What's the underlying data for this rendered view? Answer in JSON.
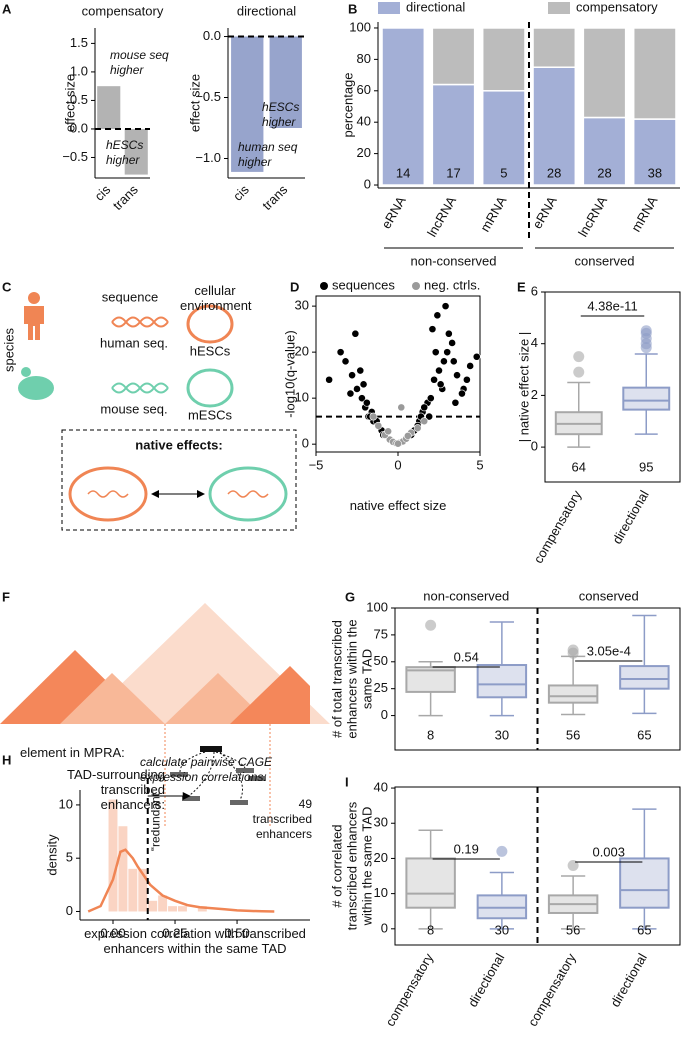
{
  "panel_labels": [
    "A",
    "B",
    "C",
    "D",
    "E",
    "F",
    "G",
    "H",
    "I"
  ],
  "diagram_c": {
    "sequence": "sequence",
    "environment": "cellular environment",
    "human_seq": "human seq.",
    "hescs": "hESCs",
    "mouse_seq": "mouse seq.",
    "mescs": "mESCs",
    "species": "species",
    "native": "native effects:"
  },
  "diagram_f": {
    "element": "element in MPRA:",
    "enhancers": "TAD-surrounding transcribed enhancers:"
  },
  "chart_data": [
    {
      "type": "bar",
      "title": "compensatory",
      "ylabel": "effect size",
      "categories": [
        "cis",
        "trans"
      ],
      "values": [
        0.75,
        -0.8
      ],
      "color": "#b3b3b3",
      "ylim": [
        -0.86,
        1.77
      ],
      "yticks": [
        {
          "value": -0.5,
          "label": "−0.5"
        },
        {
          "value": 0,
          "label": "0.0"
        },
        {
          "value": 0.5,
          "label": "0.5"
        },
        {
          "value": 1,
          "label": "1.0"
        },
        {
          "value": 1.5,
          "label": "1.5"
        }
      ],
      "annotations": [
        "mouse seq higher",
        "hESCs higher"
      ]
    },
    {
      "type": "bar",
      "title": "directional",
      "ylabel": "effect size",
      "categories": [
        "cis",
        "trans"
      ],
      "values": [
        -1.11,
        -0.75
      ],
      "color": "#97a4cc",
      "ylim": [
        -1.16,
        0.07
      ],
      "yticks": [
        {
          "value": -1,
          "label": "−1.0"
        },
        {
          "value": -0.5,
          "label": "−0.5"
        },
        {
          "value": 0,
          "label": "0.0"
        }
      ],
      "annotations": [
        "hESCs higher",
        "human seq higher"
      ]
    },
    {
      "type": "stacked",
      "ylabel": "percentage",
      "categories": [
        "eRNA",
        "lncRNA",
        "mRNA",
        "eRNA",
        "lncRNA",
        "mRNA"
      ],
      "series": [
        {
          "name": "directional",
          "color": "#a3afd6",
          "values": [
            100,
            64,
            60,
            75,
            43,
            42
          ]
        },
        {
          "name": "compensatory",
          "color": "#bcbcbc",
          "values": [
            0,
            36,
            40,
            25,
            57,
            58
          ]
        }
      ],
      "n": [
        14,
        17,
        5,
        28,
        28,
        38
      ],
      "groups": [
        "non-conserved",
        "conserved"
      ],
      "ylim": [
        -1.9,
        103.8
      ],
      "yticks": [
        0,
        20,
        40,
        60,
        80,
        100
      ]
    },
    {
      "type": "scatter",
      "xlabel": "native effect size",
      "ylabel": "-log10(q-value)",
      "xlim": [
        -5,
        5
      ],
      "ylim": [
        -1.7,
        32.2
      ],
      "xticks": [
        {
          "value": -5,
          "label": "−5"
        },
        0,
        5
      ],
      "yticks": [
        0,
        10,
        20,
        30
      ],
      "hline": 6,
      "series": [
        {
          "name": "sequences",
          "color": "#000000",
          "x": [
            -3.2,
            -2.8,
            -2.5,
            -2.2,
            -2.0,
            -1.8,
            -1.5,
            -1.2,
            -1.0,
            -3.5,
            -4.2,
            -2.6,
            -2.3,
            -1.9,
            -1.6,
            -1.3,
            -0.9,
            -2.9,
            -2.1,
            -1.7,
            1.0,
            1.3,
            1.5,
            1.8,
            2.0,
            2.2,
            2.5,
            2.8,
            3.0,
            3.3,
            3.6,
            4.0,
            4.4,
            4.8,
            1.2,
            1.6,
            2.1,
            2.4,
            2.7,
            3.1,
            3.5,
            3.9,
            1.9,
            2.6,
            3.4,
            4.2,
            2.3,
            2.9,
            1.4,
            0.8
          ],
          "y": [
            18,
            15,
            12,
            10,
            8,
            6,
            5,
            4,
            3,
            20,
            14,
            24,
            16,
            9,
            7,
            5,
            2,
            11,
            13,
            6,
            3,
            5,
            7,
            9,
            10,
            14,
            16,
            18,
            20,
            22,
            15,
            12,
            17,
            19,
            4,
            8,
            25,
            28,
            12,
            24,
            9,
            11,
            6,
            13,
            18,
            14,
            20,
            30,
            6,
            2
          ]
        },
        {
          "name": "neg. ctrls.",
          "color": "#9a9a9a",
          "x": [
            -0.5,
            -0.3,
            -0.1,
            0.1,
            0.3,
            0.5,
            -0.8,
            0.8,
            -1.2,
            1.2,
            0.0,
            -0.6,
            0.6,
            -1.5,
            1.6,
            0.2
          ],
          "y": [
            1,
            0.5,
            0.2,
            0.3,
            0.6,
            1.2,
            2,
            2.5,
            4,
            3.5,
            0.1,
            2.8,
            1.8,
            6,
            5,
            8
          ]
        }
      ]
    },
    {
      "type": "box",
      "ylabel": "| native effect size |",
      "categories": [
        "compensatory",
        "directional"
      ],
      "ylim": [
        -1.35,
        6
      ],
      "yticks": [
        0,
        2,
        4,
        6
      ],
      "boxes": [
        {
          "q1": 0.5,
          "median": 0.9,
          "q3": 1.35,
          "whislo": 0,
          "whishi": 2.5,
          "fliers": [
            2.9,
            3.5
          ],
          "color": "#a8a8a8"
        },
        {
          "q1": 1.45,
          "median": 1.8,
          "q3": 2.3,
          "whislo": 0.5,
          "whishi": 3.6,
          "fliers": [
            3.85,
            4.0,
            4.2,
            4.4,
            4.5
          ],
          "color": "#8d9cc7"
        }
      ],
      "n": [
        64,
        95
      ],
      "pvalues": [
        "4.38e-11"
      ]
    },
    {
      "type": "box",
      "ylabel": "# of total transcribed enhancers within the same TAD",
      "ylim": [
        -32,
        100
      ],
      "yticks": [
        0,
        25,
        50,
        75,
        100
      ],
      "boxes": [
        {
          "q1": 22,
          "median": 42,
          "q3": 45,
          "whislo": 0,
          "whishi": 50,
          "fliers": [
            84
          ],
          "color": "#a8a8a8"
        },
        {
          "q1": 17,
          "median": 29,
          "q3": 47,
          "whislo": 0,
          "whishi": 87,
          "fliers": [],
          "color": "#8d9cc7"
        },
        {
          "q1": 12,
          "median": 18,
          "q3": 28,
          "whislo": 1,
          "whishi": 55,
          "fliers": [
            58,
            61
          ],
          "color": "#a8a8a8"
        },
        {
          "q1": 25,
          "median": 34,
          "q3": 46,
          "whislo": 2,
          "whishi": 93,
          "fliers": [],
          "color": "#8d9cc7"
        }
      ],
      "n": [
        8,
        30,
        56,
        65
      ],
      "pvalues": [
        "0.54",
        "3.05e-4"
      ],
      "groups": [
        "non-conserved",
        "conserved"
      ]
    },
    {
      "type": "box",
      "ylabel": "# of correlated transcribed enhancers within the same TAD",
      "categories": [
        "compensatory",
        "directional",
        "compensatory",
        "directional"
      ],
      "ylim": [
        -4.6,
        40.3
      ],
      "yticks": [
        0,
        10,
        20,
        30,
        40
      ],
      "boxes": [
        {
          "q1": 6,
          "median": 10,
          "q3": 20,
          "whislo": 0,
          "whishi": 28,
          "fliers": [],
          "color": "#a8a8a8"
        },
        {
          "q1": 3,
          "median": 6,
          "q3": 9.5,
          "whislo": 0,
          "whishi": 16,
          "fliers": [
            22
          ],
          "color": "#8d9cc7"
        },
        {
          "q1": 4.5,
          "median": 7,
          "q3": 9.5,
          "whislo": 0,
          "whishi": 15,
          "fliers": [
            18
          ],
          "color": "#a8a8a8"
        },
        {
          "q1": 6,
          "median": 11,
          "q3": 20,
          "whislo": 0,
          "whishi": 34,
          "fliers": [],
          "color": "#8d9cc7"
        }
      ],
      "n": [
        8,
        30,
        56,
        65
      ],
      "pvalues": [
        "0.19",
        "0.003"
      ]
    },
    {
      "type": "histogram",
      "xlabel": "expression correlation with transcribed enhancers within the same TAD",
      "ylabel": "density",
      "color": "#f08554",
      "bins": [
        -0.02,
        0.02,
        0.06,
        0.1,
        0.14,
        0.18,
        0.22,
        0.26,
        0.3,
        0.34,
        0.38
      ],
      "counts": [
        10.5,
        8,
        4,
        4,
        1,
        1.5,
        0.5,
        0.5,
        0,
        0.5
      ],
      "density": {
        "x": [
          -0.1,
          -0.05,
          0,
          0.03,
          0.05,
          0.08,
          0.1,
          0.15,
          0.2,
          0.25,
          0.3,
          0.35,
          0.4,
          0.45,
          0.5,
          0.55,
          0.6,
          0.65
        ],
        "y": [
          0,
          0.5,
          3,
          5.6,
          5.8,
          5,
          4.2,
          2.5,
          1.5,
          1,
          0.6,
          0.4,
          0.3,
          0.2,
          0.1,
          0.05,
          0.02,
          0
        ]
      },
      "vline": 0.14,
      "xlim": [
        -0.133,
        0.794
      ],
      "ylim": [
        -0.8,
        11.4
      ],
      "xticks": [
        {
          "value": 0,
          "label": "0.00"
        },
        {
          "value": 0.25,
          "label": "0.25"
        },
        {
          "value": 0.5,
          "label": "0.50"
        }
      ],
      "yticks": [
        0,
        5,
        10
      ],
      "annotations": [
        "calculate pairwise CAGE expression correlations:",
        "49 transcribed enhancers",
        "“redundant”"
      ]
    }
  ]
}
